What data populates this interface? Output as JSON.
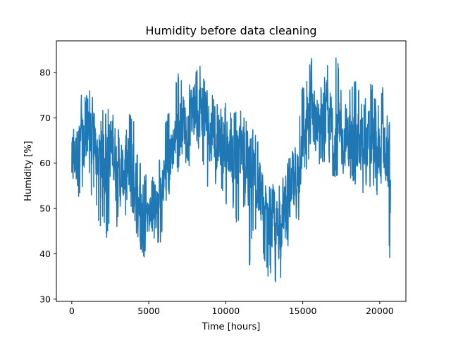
{
  "chart_data": {
    "type": "line",
    "title": "Humidity before data cleaning",
    "xlabel": "Time [hours]",
    "ylabel": "Humidity [%]",
    "xlim": [
      -1000,
      21700
    ],
    "ylim": [
      29.5,
      87.0
    ],
    "xticks": [
      0,
      5000,
      10000,
      15000,
      20000
    ],
    "yticks": [
      30,
      40,
      50,
      60,
      70,
      80
    ],
    "grid": false,
    "series": [
      {
        "color": "#1f77b4",
        "x": [
          0,
          250,
          500,
          750,
          1000,
          1250,
          1500,
          1750,
          2000,
          2250,
          2500,
          2750,
          3000,
          3250,
          3500,
          3750,
          4000,
          4250,
          4500,
          4750,
          5000,
          5250,
          5500,
          5750,
          6000,
          6250,
          6500,
          6750,
          7000,
          7250,
          7500,
          7750,
          8000,
          8250,
          8500,
          8750,
          9000,
          9250,
          9500,
          9750,
          10000,
          10250,
          10500,
          10750,
          11000,
          11250,
          11500,
          11750,
          12000,
          12250,
          12500,
          12750,
          13000,
          13250,
          13500,
          13750,
          14000,
          14250,
          14500,
          14750,
          15000,
          15250,
          15500,
          15750,
          16000,
          16250,
          16500,
          16750,
          17000,
          17250,
          17500,
          17750,
          18000,
          18250,
          18500,
          18750,
          19000,
          19250,
          19500,
          19750,
          20000,
          20250,
          20500,
          20700
        ],
        "y_mean": [
          60,
          62,
          64,
          63,
          65,
          66,
          64,
          62,
          60,
          61,
          63,
          62,
          57,
          56,
          60,
          58,
          55,
          53,
          51,
          50,
          49,
          51,
          50,
          53,
          57,
          60,
          63,
          66,
          68,
          70,
          69,
          70,
          71,
          71,
          72,
          70,
          67,
          65,
          64,
          66,
          63,
          62,
          61,
          60,
          63,
          61,
          57,
          59,
          58,
          53,
          48,
          46,
          47,
          45,
          47,
          48,
          50,
          52,
          54,
          58,
          66,
          68,
          70,
          71,
          70,
          69,
          70,
          68,
          67,
          66,
          64,
          66,
          65,
          66,
          64,
          62,
          63,
          65,
          63,
          62,
          62,
          64,
          60,
          58
        ],
        "y_min": [
          48,
          50,
          52,
          55,
          53,
          52,
          54,
          45,
          47,
          43,
          48,
          46,
          45,
          46,
          48,
          44,
          42,
          44,
          40,
          39,
          42,
          45,
          41,
          41,
          48,
          52,
          55,
          58,
          58,
          60,
          60,
          58,
          61,
          61,
          60,
          56,
          52,
          54,
          54,
          53,
          50,
          50,
          48,
          46,
          50,
          49,
          35,
          45,
          44,
          43,
          38,
          35,
          36,
          32,
          34,
          37,
          40,
          42,
          43,
          46,
          57,
          58,
          60,
          63,
          59,
          60,
          59,
          57,
          57,
          57,
          55,
          57,
          54,
          56,
          55,
          51,
          53,
          55,
          52,
          53,
          51,
          55,
          50,
          35
        ],
        "y_max": [
          67,
          70,
          75,
          76,
          75,
          78,
          75,
          70,
          72,
          71,
          73,
          72,
          68,
          65,
          76,
          72,
          70,
          63,
          60,
          58,
          56,
          58,
          57,
          62,
          69,
          71,
          74,
          78,
          81,
          79,
          80,
          76,
          79,
          84,
          80,
          78,
          76,
          74,
          73,
          75,
          73,
          72,
          71,
          73,
          73,
          71,
          66,
          68,
          67,
          61,
          57,
          55,
          56,
          55,
          56,
          57,
          60,
          63,
          64,
          70,
          78,
          79,
          84,
          82,
          80,
          78,
          82,
          83,
          86,
          84,
          77,
          78,
          77,
          79,
          78,
          75,
          74,
          77,
          78,
          75,
          73,
          78,
          72,
          68
        ]
      }
    ]
  }
}
